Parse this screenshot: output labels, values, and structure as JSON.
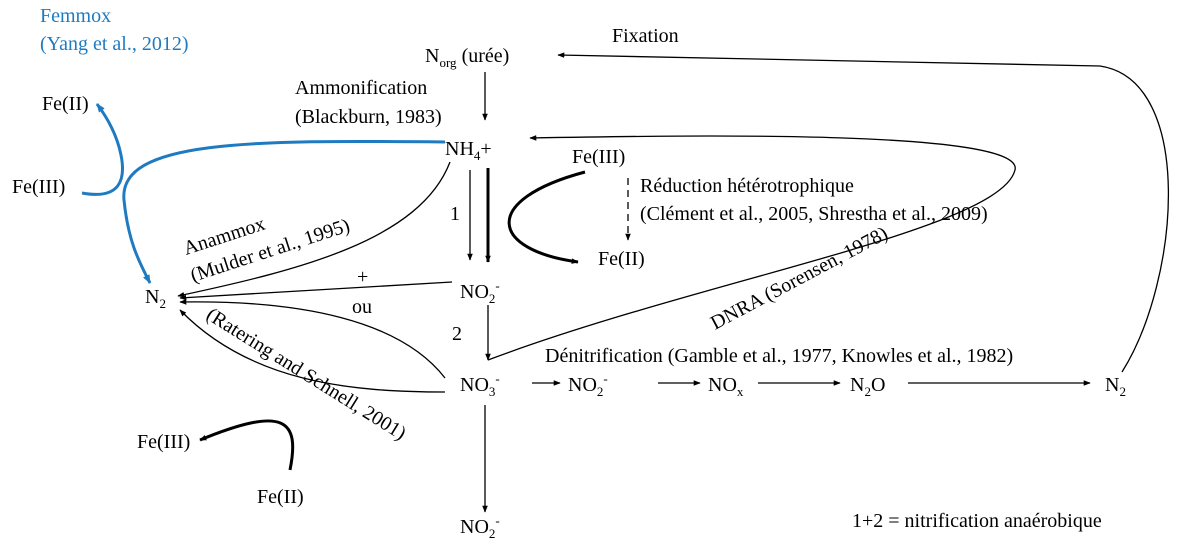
{
  "labels": [
    {
      "parts": [
        {
          "t": "Femmox"
        }
      ]
    },
    {
      "parts": [
        {
          "t": "(Yang et al., 2012)"
        }
      ]
    },
    {
      "parts": [
        {
          "t": "Fixation"
        }
      ]
    },
    {
      "parts": [
        {
          "t": "N"
        },
        {
          "sub": "org"
        },
        {
          "t": " (urée)"
        }
      ]
    },
    {
      "parts": [
        {
          "t": "Ammonification"
        }
      ]
    },
    {
      "parts": [
        {
          "t": "(Blackburn, 1983)"
        }
      ]
    },
    {
      "parts": [
        {
          "t": "Fe(II)"
        }
      ]
    },
    {
      "parts": [
        {
          "t": "NH"
        },
        {
          "sub": "4"
        },
        {
          "t": "+"
        }
      ]
    },
    {
      "parts": [
        {
          "t": "Fe(III)"
        }
      ]
    },
    {
      "parts": [
        {
          "t": "Fe(III)"
        }
      ]
    },
    {
      "parts": [
        {
          "t": "Réduction hétérotrophique"
        }
      ]
    },
    {
      "parts": [
        {
          "t": "(Clément et al., 2005, Shrestha et al., 2009)"
        }
      ]
    },
    {
      "parts": [
        {
          "t": "1"
        }
      ]
    },
    {
      "parts": [
        {
          "t": "Anammox"
        }
      ]
    },
    {
      "parts": [
        {
          "t": "(Mulder et al., 1995)"
        }
      ]
    },
    {
      "parts": [
        {
          "t": "Fe(II)"
        }
      ]
    },
    {
      "parts": [
        {
          "t": "+"
        }
      ]
    },
    {
      "parts": [
        {
          "t": "N"
        },
        {
          "sub": "2"
        }
      ]
    },
    {
      "parts": [
        {
          "t": "NO"
        },
        {
          "sub": "2"
        },
        {
          "sup": "-"
        }
      ]
    },
    {
      "parts": [
        {
          "t": "ou"
        }
      ]
    },
    {
      "parts": [
        {
          "t": "DNRA (Sorensen, 1978)"
        }
      ]
    },
    {
      "parts": [
        {
          "t": "2"
        }
      ]
    },
    {
      "parts": [
        {
          "t": "Dénitrification (Gamble et al., 1977, Knowles et al., 1982)"
        }
      ]
    },
    {
      "parts": [
        {
          "t": "(Ratering and Schnell, 2001)"
        }
      ]
    },
    {
      "parts": [
        {
          "t": "NO"
        },
        {
          "sub": "3"
        },
        {
          "sup": "-"
        }
      ]
    },
    {
      "parts": [
        {
          "t": "NO"
        },
        {
          "sub": "2"
        },
        {
          "sup": "-"
        }
      ]
    },
    {
      "parts": [
        {
          "t": "NO"
        },
        {
          "sub": "x"
        }
      ]
    },
    {
      "parts": [
        {
          "t": "N"
        },
        {
          "sub": "2"
        },
        {
          "t": "O"
        }
      ]
    },
    {
      "parts": [
        {
          "t": "N"
        },
        {
          "sub": "2"
        }
      ]
    },
    {
      "parts": [
        {
          "t": "Fe(III)"
        }
      ]
    },
    {
      "parts": [
        {
          "t": "Fe(II)"
        }
      ]
    },
    {
      "parts": [
        {
          "t": "NO"
        },
        {
          "sub": "2"
        },
        {
          "sup": "-"
        }
      ]
    },
    {
      "parts": [
        {
          "t": "1+2 = nitrification anaérobique"
        }
      ]
    }
  ]
}
